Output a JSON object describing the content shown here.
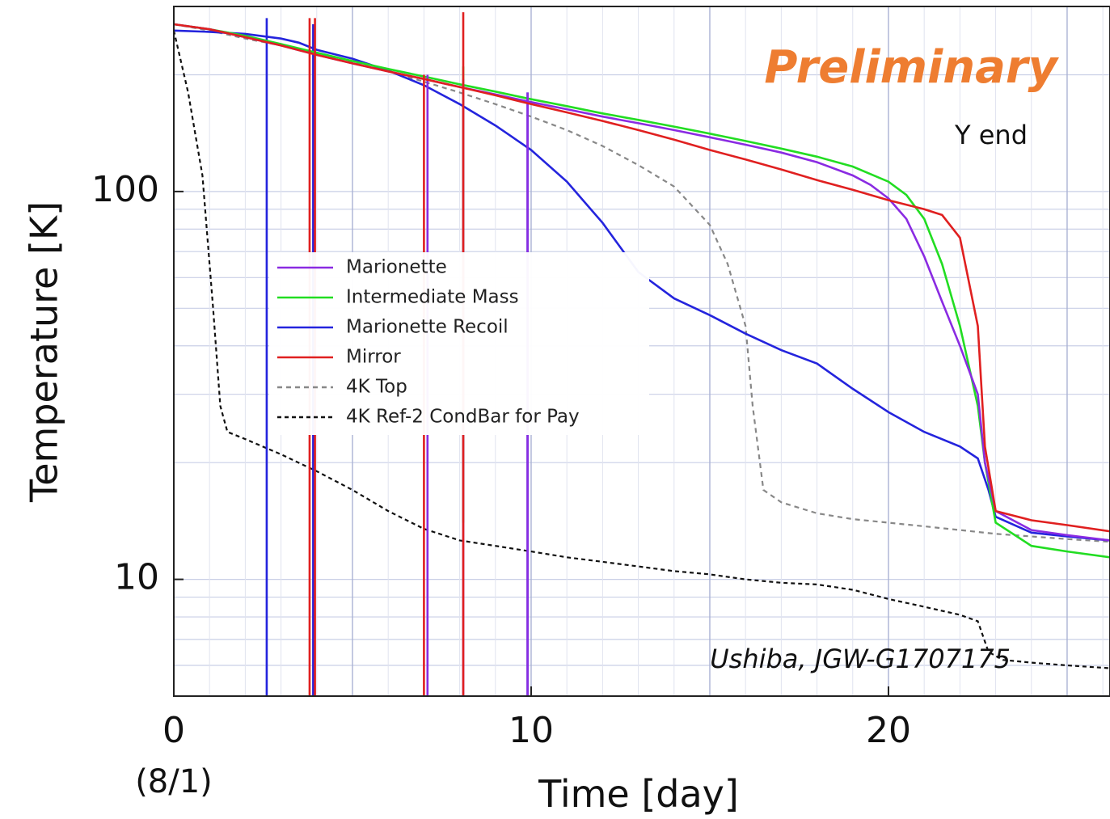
{
  "annotations": {
    "preliminary": "Preliminary",
    "preliminary_color": "#ee7d31",
    "location": "Y end",
    "credit": "Ushiba, JGW-G1707175"
  },
  "chart_data": {
    "type": "line",
    "title": "",
    "xlabel": "Time [day]",
    "ylabel": "Temperature [K]",
    "xlim": [
      0,
      26.2
    ],
    "ylim": [
      5,
      300
    ],
    "yscale": "log",
    "grid": true,
    "legend_position": "center-left",
    "x_ticks": [
      {
        "value": 0,
        "label": "0",
        "sublabel": "(8/1)"
      },
      {
        "value": 10,
        "label": "10"
      },
      {
        "value": 20,
        "label": "20"
      }
    ],
    "y_ticks": [
      {
        "value": 10,
        "label": "10"
      },
      {
        "value": 100,
        "label": "100"
      }
    ],
    "series": [
      {
        "name": "Marionette",
        "color": "#8a2be2",
        "dash": "solid",
        "x": [
          0,
          1,
          2,
          3,
          4,
          5,
          6,
          7,
          8,
          9,
          10,
          11,
          12,
          13,
          14,
          15,
          16,
          17,
          18,
          19,
          19.5,
          20,
          20.5,
          21,
          21.5,
          22,
          22.5,
          22.7,
          23,
          24,
          25,
          26.2
        ],
        "y": [
          270,
          262,
          250,
          238,
          225,
          214,
          204,
          195,
          186,
          178,
          170,
          163,
          156,
          150,
          144,
          138,
          132,
          126,
          119,
          110,
          104,
          96,
          85,
          68,
          52,
          40,
          30,
          20,
          15,
          13.4,
          13.0,
          12.6
        ],
        "spikes": [
          {
            "x": 7.1,
            "from": 5,
            "to": 200
          },
          {
            "x": 8.1,
            "from": 5,
            "to": 195
          },
          {
            "x": 9.9,
            "from": 5,
            "to": 180
          }
        ]
      },
      {
        "name": "Intermediate Mass",
        "color": "#22dd22",
        "dash": "solid",
        "x": [
          0,
          1,
          2,
          3,
          4,
          5,
          6,
          7,
          8,
          9,
          10,
          11,
          12,
          13,
          14,
          15,
          16,
          17,
          18,
          19,
          20,
          20.5,
          21,
          21.5,
          22,
          22.5,
          22.7,
          23,
          24,
          25,
          26.2
        ],
        "y": [
          270,
          262,
          252,
          240,
          228,
          217,
          207,
          198,
          189,
          181,
          173,
          166,
          159,
          153,
          147,
          141,
          135,
          129,
          123,
          116,
          106,
          98,
          85,
          65,
          45,
          28,
          20,
          14,
          12.2,
          11.8,
          11.4
        ],
        "spikes": [
          {
            "x": 8.1,
            "from": 14,
            "to": 210
          }
        ]
      },
      {
        "name": "Marionette Recoil",
        "color": "#2424dd",
        "dash": "solid",
        "x": [
          0,
          1,
          2,
          3,
          3.5,
          4,
          5,
          6,
          7,
          8,
          9,
          10,
          11,
          12,
          13,
          14,
          15,
          16,
          17,
          18,
          19,
          20,
          21,
          22,
          22.5,
          22.8,
          23,
          24,
          25,
          26.2
        ],
        "y": [
          260,
          258,
          255,
          248,
          242,
          232,
          220,
          205,
          188,
          168,
          148,
          128,
          106,
          83,
          62,
          53,
          48,
          43,
          39,
          36,
          31,
          27,
          24,
          22,
          20.5,
          17,
          14.5,
          13.2,
          12.9,
          12.6
        ],
        "spikes": [
          {
            "x": 2.6,
            "from": 5,
            "to": 280
          },
          {
            "x": 3.9,
            "from": 5,
            "to": 270
          },
          {
            "x": 9.9,
            "from": 5,
            "to": 180
          }
        ]
      },
      {
        "name": "Mirror",
        "color": "#e02020",
        "dash": "solid",
        "x": [
          0,
          1,
          2,
          3,
          4,
          5,
          6,
          7,
          8,
          9,
          10,
          11,
          12,
          13,
          14,
          15,
          16,
          17,
          18,
          19,
          20,
          21,
          21.5,
          22,
          22.5,
          22.7,
          23,
          24,
          25,
          26.2
        ],
        "y": [
          270,
          262,
          250,
          238,
          225,
          214,
          204,
          195,
          186,
          177,
          168,
          160,
          152,
          144,
          136,
          128,
          121,
          114,
          107,
          101,
          95,
          90,
          87,
          76,
          45,
          22,
          15,
          14.2,
          13.8,
          13.3
        ],
        "spikes": [
          {
            "x": 3.8,
            "from": 5,
            "to": 280
          },
          {
            "x": 3.95,
            "from": 5,
            "to": 280
          },
          {
            "x": 7.0,
            "from": 5,
            "to": 200
          },
          {
            "x": 8.1,
            "from": 5,
            "to": 290
          }
        ]
      },
      {
        "name": "4K Top",
        "color": "#888888",
        "dash": "short",
        "x": [
          0,
          1,
          2,
          3,
          4,
          5,
          6,
          7,
          8,
          9,
          10,
          11,
          12,
          13,
          14,
          15,
          15.5,
          16,
          16.2,
          16.5,
          17,
          18,
          19,
          20,
          21,
          22,
          23,
          24,
          25,
          26.2
        ],
        "y": [
          270,
          260,
          248,
          238,
          226,
          215,
          204,
          192,
          180,
          168,
          156,
          144,
          131,
          117,
          103,
          82,
          65,
          45,
          28,
          17,
          15.8,
          14.8,
          14.3,
          14.0,
          13.7,
          13.4,
          13.1,
          12.9,
          12.7,
          12.5
        ],
        "spikes": []
      },
      {
        "name": "4K Ref-2 CondBar for Pay",
        "color": "#111111",
        "dash": "dense",
        "x": [
          0,
          0.4,
          0.8,
          1.1,
          1.3,
          1.5,
          2,
          3,
          4,
          5,
          6,
          7,
          8,
          9,
          10,
          11,
          12,
          13,
          14,
          15,
          16,
          17,
          18,
          19,
          20,
          21,
          22,
          22.5,
          22.8,
          23.2,
          24,
          25,
          26.2
        ],
        "y": [
          260,
          180,
          110,
          50,
          28,
          24,
          23,
          21,
          19,
          17,
          15,
          13.5,
          12.6,
          12.2,
          11.8,
          11.4,
          11.1,
          10.8,
          10.5,
          10.3,
          10.0,
          9.8,
          9.7,
          9.4,
          8.9,
          8.5,
          8.1,
          7.8,
          6.5,
          6.2,
          6.1,
          6.0,
          5.9
        ],
        "spikes": []
      }
    ]
  }
}
